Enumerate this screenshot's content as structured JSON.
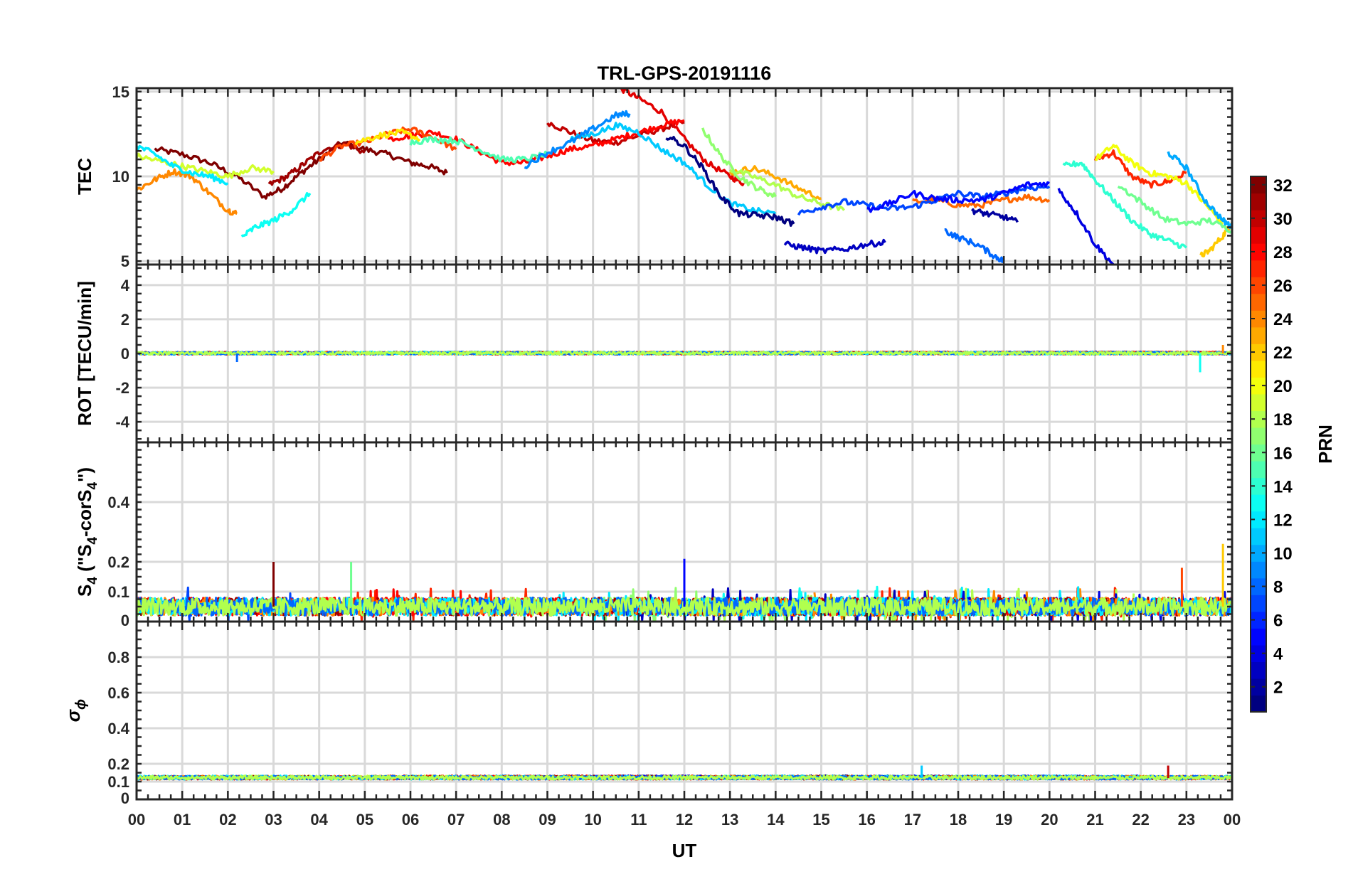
{
  "chart_data": {
    "type": "line",
    "title": "TRL-GPS-20191116",
    "xlabel": "UT",
    "x_range_hours": [
      0,
      24
    ],
    "x_tick_labels": [
      "00",
      "01",
      "02",
      "03",
      "04",
      "05",
      "06",
      "07",
      "08",
      "09",
      "10",
      "11",
      "12",
      "13",
      "14",
      "15",
      "16",
      "17",
      "18",
      "19",
      "20",
      "21",
      "22",
      "23",
      "00"
    ],
    "colorbar": {
      "label": "PRN",
      "range": [
        1,
        32
      ],
      "tick_labels": [
        "2",
        "4",
        "6",
        "8",
        "10",
        "12",
        "14",
        "16",
        "18",
        "20",
        "22",
        "24",
        "26",
        "28",
        "30",
        "32"
      ],
      "colormap": "jet"
    },
    "panels": [
      {
        "name": "tec",
        "ylabel": "TEC",
        "ylim": [
          4.8,
          15.2
        ],
        "yticks": [
          5,
          10,
          15
        ],
        "series": [
          {
            "prn": 32,
            "x": [
              0.4,
              1.0,
              1.6,
              2.2,
              2.8,
              3.2,
              3.6,
              4.0,
              4.5,
              5.0,
              5.5,
              6.0,
              6.4,
              6.8
            ],
            "y": [
              11.6,
              11.3,
              10.8,
              10.0,
              8.8,
              9.3,
              10.2,
              11.0,
              12.0,
              11.6,
              11.3,
              10.8,
              10.6,
              10.2
            ]
          },
          {
            "prn": 30,
            "x": [
              9.0,
              9.5,
              10.0,
              10.5,
              11.0,
              11.5,
              12.0
            ],
            "y": [
              13.2,
              12.6,
              12.1,
              12.0,
              12.4,
              12.8,
              13.2
            ]
          },
          {
            "prn": 31,
            "x": [
              2.9,
              3.3,
              3.7,
              4.1,
              4.6,
              5.0
            ],
            "y": [
              9.5,
              10.0,
              10.8,
              11.6,
              11.9,
              11.4
            ]
          },
          {
            "prn": 29,
            "x": [
              10.6,
              11.0,
              11.5,
              12.0,
              12.5,
              13.0,
              13.3
            ],
            "y": [
              15.2,
              14.6,
              13.8,
              12.2,
              10.8,
              10.0,
              9.6
            ]
          },
          {
            "prn": 28,
            "x": [
              5.5,
              6.0,
              6.5,
              7.0,
              7.5,
              8.0,
              8.5,
              9.0,
              9.5,
              10.0,
              10.5,
              11.0,
              11.5,
              12.0
            ],
            "y": [
              12.2,
              12.4,
              12.6,
              12.2,
              11.5,
              10.8,
              10.8,
              11.2,
              11.6,
              11.8,
              12.2,
              12.6,
              13.0,
              13.3
            ]
          },
          {
            "prn": 27,
            "x": [
              21.0,
              21.4,
              21.8,
              22.2,
              22.6,
              23.0
            ],
            "y": [
              11.0,
              11.4,
              10.0,
              9.5,
              9.7,
              10.2
            ]
          },
          {
            "prn": 26,
            "x": [
              4.0,
              4.5,
              5.0,
              5.5,
              6.0,
              6.5,
              7.0
            ],
            "y": [
              11.0,
              11.8,
              12.0,
              12.5,
              12.8,
              12.3,
              11.6
            ]
          },
          {
            "prn": 25,
            "x": [
              17.0,
              17.5,
              18.0,
              18.5,
              19.0,
              19.5,
              20.0
            ],
            "y": [
              8.5,
              8.6,
              8.3,
              8.3,
              8.6,
              8.8,
              8.6
            ]
          },
          {
            "prn": 24,
            "x": [
              0.0,
              0.4,
              0.8,
              1.2,
              1.6,
              2.0,
              2.2
            ],
            "y": [
              9.2,
              9.8,
              10.3,
              10.0,
              9.0,
              8.0,
              7.8
            ]
          },
          {
            "prn": 23,
            "x": [
              13.0,
              13.5,
              14.0,
              14.5,
              15.0
            ],
            "y": [
              10.2,
              10.5,
              10.0,
              9.3,
              8.7
            ]
          },
          {
            "prn": 22,
            "x": [
              23.3,
              23.5,
              23.8,
              24.0
            ],
            "y": [
              5.3,
              5.6,
              6.5,
              7.3
            ]
          },
          {
            "prn": 21,
            "x": [
              4.8,
              5.3,
              5.8,
              6.2
            ],
            "y": [
              12.0,
              12.4,
              12.6,
              12.2
            ]
          },
          {
            "prn": 20,
            "x": [
              21.0,
              21.4,
              21.8,
              22.2,
              22.6,
              23.0,
              23.4,
              23.8
            ],
            "y": [
              11.0,
              11.8,
              10.8,
              10.2,
              10.0,
              9.6,
              8.4,
              7.2
            ]
          },
          {
            "prn": 19,
            "x": [
              0.0,
              0.5,
              1.0,
              1.5,
              2.0,
              2.5,
              3.0
            ],
            "y": [
              11.2,
              10.9,
              10.6,
              10.3,
              10.0,
              10.5,
              10.3
            ]
          },
          {
            "prn": 18,
            "x": [
              13.0,
              13.5,
              14.0,
              14.5,
              15.0,
              15.5
            ],
            "y": [
              10.4,
              10.0,
              9.5,
              8.8,
              8.4,
              8.0
            ]
          },
          {
            "prn": 17,
            "x": [
              12.4,
              12.8,
              13.2,
              13.6,
              14.0
            ],
            "y": [
              12.8,
              11.2,
              10.0,
              9.3,
              8.8
            ]
          },
          {
            "prn": 16,
            "x": [
              21.5,
              22.0,
              22.5,
              23.0,
              23.5,
              24.0
            ],
            "y": [
              9.5,
              8.5,
              7.5,
              7.2,
              7.4,
              6.8
            ]
          },
          {
            "prn": 15,
            "x": [
              6.0,
              6.5,
              7.0,
              7.5,
              8.0,
              8.5,
              9.0
            ],
            "y": [
              12.0,
              12.2,
              12.1,
              11.6,
              11.0,
              11.0,
              11.3
            ]
          },
          {
            "prn": 14,
            "x": [
              20.3,
              20.7,
              21.0,
              21.4,
              21.8,
              22.2,
              22.6,
              23.0
            ],
            "y": [
              10.6,
              10.8,
              9.8,
              8.6,
              7.4,
              6.6,
              6.2,
              5.8
            ]
          },
          {
            "prn": 13,
            "x": [
              2.3,
              2.6,
              3.0,
              3.4,
              3.8
            ],
            "y": [
              6.4,
              7.0,
              7.4,
              8.0,
              9.0
            ]
          },
          {
            "prn": 12,
            "x": [
              0.0,
              0.4,
              0.8,
              1.2,
              1.6,
              2.0
            ],
            "y": [
              11.8,
              11.3,
              10.6,
              10.2,
              10.0,
              9.6
            ]
          },
          {
            "prn": 11,
            "x": [
              9.5,
              10.0,
              10.5,
              11.0,
              11.5,
              12.0,
              12.5,
              13.0,
              13.5,
              14.0
            ],
            "y": [
              12.2,
              12.5,
              13.0,
              12.6,
              11.6,
              10.8,
              9.5,
              8.4,
              8.0,
              7.8
            ]
          },
          {
            "prn": 10,
            "x": [
              22.6,
              23.0,
              23.4,
              23.8,
              24.0
            ],
            "y": [
              11.4,
              10.5,
              8.6,
              7.4,
              7.0
            ]
          },
          {
            "prn": 9,
            "x": [
              8.5,
              9.0,
              9.5,
              10.0,
              10.5,
              10.8
            ],
            "y": [
              10.6,
              11.4,
              12.0,
              12.8,
              13.6,
              13.7
            ]
          },
          {
            "prn": 8,
            "x": [
              17.7,
              18.0,
              18.4,
              18.8,
              19.0
            ],
            "y": [
              6.8,
              6.4,
              6.0,
              5.3,
              5.0
            ]
          },
          {
            "prn": 7,
            "x": [
              14.5,
              15.0,
              15.5,
              16.0,
              16.5,
              17.0,
              17.5,
              18.0,
              18.5,
              19.0,
              19.5,
              20.0
            ],
            "y": [
              7.8,
              8.2,
              8.5,
              8.3,
              8.1,
              8.2,
              8.6,
              9.0,
              8.8,
              9.0,
              9.3,
              9.4
            ]
          },
          {
            "prn": 5,
            "x": [
              16.0,
              16.5,
              17.0,
              17.5,
              18.0,
              18.5,
              19.0,
              19.5,
              20.0
            ],
            "y": [
              8.0,
              8.4,
              9.0,
              8.7,
              8.6,
              8.6,
              9.0,
              9.5,
              9.6
            ]
          },
          {
            "prn": 4,
            "x": [
              20.2,
              20.6,
              21.0,
              21.4
            ],
            "y": [
              9.2,
              7.8,
              6.0,
              4.8
            ]
          },
          {
            "prn": 3,
            "x": [
              14.2,
              14.6,
              15.0,
              15.5,
              16.0,
              16.4
            ],
            "y": [
              6.0,
              5.8,
              5.6,
              5.7,
              6.0,
              6.1
            ]
          },
          {
            "prn": 2,
            "x": [
              18.3,
              18.6,
              19.0,
              19.3
            ],
            "y": [
              8.0,
              7.8,
              7.6,
              7.3
            ]
          },
          {
            "prn": 1,
            "x": [
              11.6,
              12.0,
              12.4,
              12.8,
              13.2,
              13.6,
              14.0,
              14.4
            ],
            "y": [
              12.4,
              11.8,
              10.5,
              8.8,
              7.8,
              7.7,
              7.6,
              7.2
            ]
          }
        ]
      },
      {
        "name": "rot",
        "ylabel": "ROT [TECU/min]",
        "ylim": [
          -5.2,
          5.2
        ],
        "yticks": [
          -4,
          -2,
          0,
          2,
          4
        ],
        "baseline": 0.0,
        "noise_amplitude": 0.15,
        "spikes": [
          {
            "x": 23.3,
            "y": -1.1
          },
          {
            "x": 23.8,
            "y": 0.5
          },
          {
            "x": 2.2,
            "y": -0.5
          }
        ]
      },
      {
        "name": "s4",
        "ylabel": "S4 (\"S4-corS4\")",
        "ylabel_main": "S",
        "ylabel_sub": "4",
        "ylabel_mid": " (\"S",
        "ylabel_sub2": "4",
        "ylabel_end": "-corS",
        "ylabel_sub3": "4",
        "ylabel_close": "\")",
        "ylim": [
          0,
          0.6
        ],
        "yticks": [
          0,
          0.1,
          0.2,
          0.4
        ],
        "ytick_labels": [
          "0",
          "0.1",
          "0.2",
          "0.4"
        ],
        "baseline": 0.05,
        "noise_amplitude": 0.06,
        "spikes": [
          {
            "x": 12.0,
            "y": 0.21
          },
          {
            "x": 4.7,
            "y": 0.2
          },
          {
            "x": 3.0,
            "y": 0.2
          },
          {
            "x": 23.8,
            "y": 0.26
          },
          {
            "x": 22.9,
            "y": 0.18
          }
        ]
      },
      {
        "name": "sigma_phi",
        "ylabel": "σϕ",
        "ylabel_main": "σ",
        "ylabel_sub": "ϕ",
        "ylim": [
          0,
          1
        ],
        "yticks": [
          0,
          0.1,
          0.2,
          0.4,
          0.6,
          0.8
        ],
        "ytick_labels": [
          "0",
          "0.1",
          "0.2",
          "0.4",
          "0.6",
          "0.8"
        ],
        "baseline": 0.12,
        "noise_amplitude": 0.02,
        "spikes": [
          {
            "x": 17.2,
            "y": 0.19
          },
          {
            "x": 22.6,
            "y": 0.19
          }
        ]
      }
    ]
  }
}
